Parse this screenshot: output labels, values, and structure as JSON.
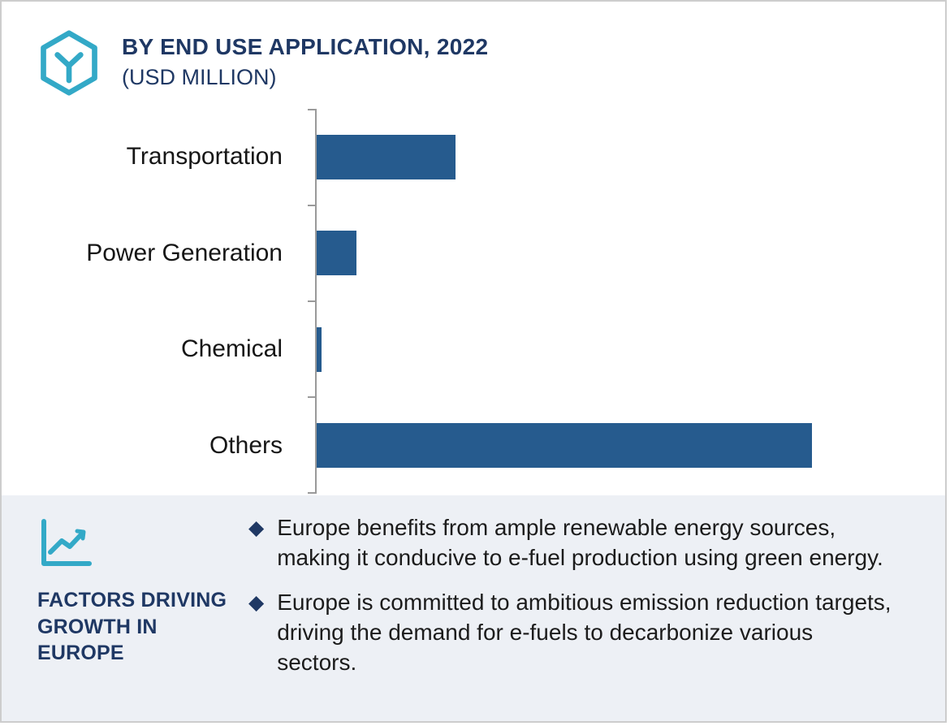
{
  "header": {
    "title_line1": "BY END USE APPLICATION, 2022",
    "title_line2": "(USD MILLION)"
  },
  "chart_data": {
    "type": "bar",
    "orientation": "horizontal",
    "title": "BY END USE APPLICATION, 2022 (USD MILLION)",
    "categories": [
      "Transportation",
      "Power Generation",
      "Chemical",
      "Others"
    ],
    "values": [
      28,
      8,
      1,
      100
    ],
    "xlim": [
      0,
      100
    ],
    "xlabel": "",
    "ylabel": "",
    "grid": false,
    "value_axis_labels_shown": false,
    "bar_color": "#265B8E",
    "axis_color": "#9A9A9A"
  },
  "panel": {
    "heading": "FACTORS DRIVING\nGROWTH IN\nEUROPE",
    "bullets": [
      "Europe benefits from ample renewable energy sources, making it conducive to e-fuel production using green energy.",
      "Europe is committed to ambitious emission reduction targets, driving the demand for e-fuels to decarbonize various sectors."
    ]
  },
  "icons": {
    "logo": "hexagon-molecule-icon",
    "panel_icon": "line-chart-icon",
    "bullet_icon": "diamond-bullet-icon"
  },
  "colors": {
    "navy": "#1F3864",
    "bar_blue": "#265B8E",
    "teal": "#33A9C7",
    "panel_bg": "#EDF0F5",
    "axis_gray": "#9A9A9A"
  }
}
